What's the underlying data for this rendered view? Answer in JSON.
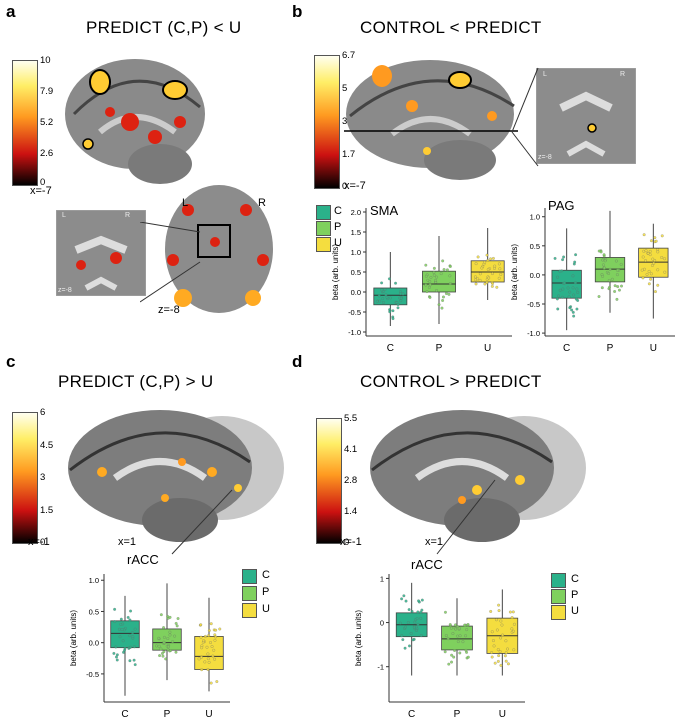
{
  "panels": {
    "a": {
      "label": "a",
      "title": "PREDICT (C,P) < U",
      "colorbar": [
        "10",
        "7.9",
        "5.2",
        "2.6",
        "0"
      ],
      "brain_labels": [
        "x=-7",
        "L",
        "R",
        "z=-8"
      ],
      "inset_labels": [
        "L",
        "R",
        "z=-8"
      ]
    },
    "b": {
      "label": "b",
      "title": "CONTROL < PREDICT",
      "colorbar": [
        "6.7",
        "5",
        "3.4",
        "1.7",
        "0"
      ],
      "brain_labels": [
        "x=-7"
      ],
      "inset_labels": [
        "L",
        "R",
        "z=-8"
      ]
    },
    "c": {
      "label": "c",
      "title": "PREDICT (C,P) > U",
      "colorbar": [
        "6",
        "4.5",
        "3",
        "1.5",
        "0"
      ],
      "brain_labels": [
        "x=-1",
        "x=1"
      ]
    },
    "d": {
      "label": "d",
      "title": "CONTROL > PREDICT",
      "colorbar": [
        "5.5",
        "4.1",
        "2.8",
        "1.4",
        "0"
      ],
      "brain_labels": [
        "x=-1",
        "x=1"
      ]
    }
  },
  "legend": [
    {
      "key": "C",
      "color": "#2bb18a"
    },
    {
      "key": "P",
      "color": "#7fd05e"
    },
    {
      "key": "U",
      "color": "#f4dd3f"
    }
  ],
  "colors": {
    "colormap_low": "#000000",
    "colormap_mid": "#cc1111",
    "colormap_high": "#ffee66",
    "colormap_top": "#fffff0"
  },
  "chart_data": [
    {
      "type": "box",
      "title": "SMA",
      "ylabel": "beta (arb. units)",
      "categories": [
        "C",
        "P",
        "U"
      ],
      "yticks": [
        "-1.0",
        "-0.5",
        "0.0",
        "0.5",
        "1.0",
        "1.5",
        "2.0"
      ],
      "ylim": [
        -1.1,
        2.1
      ],
      "boxes": [
        {
          "min": -0.85,
          "q1": -0.32,
          "median": -0.08,
          "q3": 0.1,
          "max": 1.0
        },
        {
          "min": -0.8,
          "q1": 0.0,
          "median": 0.2,
          "q3": 0.52,
          "max": 1.4
        },
        {
          "min": -0.2,
          "q1": 0.25,
          "median": 0.5,
          "q3": 0.78,
          "max": 1.6
        }
      ]
    },
    {
      "type": "box",
      "title": "PAG",
      "ylabel": "beta (arb. units)",
      "categories": [
        "C",
        "P",
        "U"
      ],
      "yticks": [
        "-1.0",
        "-0.5",
        "0.0",
        "0.5",
        "1.0"
      ],
      "ylim": [
        -1.05,
        1.15
      ],
      "boxes": [
        {
          "min": -0.95,
          "q1": -0.4,
          "median": -0.14,
          "q3": 0.08,
          "max": 0.8
        },
        {
          "min": -0.65,
          "q1": -0.12,
          "median": 0.1,
          "q3": 0.3,
          "max": 1.1
        },
        {
          "min": -0.75,
          "q1": -0.04,
          "median": 0.22,
          "q3": 0.46,
          "max": 0.88
        }
      ]
    },
    {
      "type": "box",
      "title": "rACC",
      "ylabel": "beta (arb. units)",
      "categories": [
        "C",
        "P",
        "U"
      ],
      "yticks": [
        "-0.5",
        "0.0",
        "0.5",
        "1.0"
      ],
      "ylim": [
        -0.95,
        1.1
      ],
      "boxes": [
        {
          "min": -0.85,
          "q1": -0.08,
          "median": 0.15,
          "q3": 0.35,
          "max": 0.75
        },
        {
          "min": -0.6,
          "q1": -0.12,
          "median": 0.0,
          "q3": 0.22,
          "max": 0.95
        },
        {
          "min": -0.78,
          "q1": -0.43,
          "median": -0.22,
          "q3": 0.1,
          "max": 0.72
        }
      ]
    },
    {
      "type": "box",
      "title": "rACC",
      "ylabel": "beta (arb. units)",
      "categories": [
        "C",
        "P",
        "U"
      ],
      "yticks": [
        "-1",
        "0",
        "1"
      ],
      "ylim": [
        -1.8,
        1.1
      ],
      "boxes": [
        {
          "min": -1.2,
          "q1": -0.32,
          "median": -0.05,
          "q3": 0.22,
          "max": 0.9
        },
        {
          "min": -1.2,
          "q1": -0.62,
          "median": -0.37,
          "q3": -0.08,
          "max": 0.55
        },
        {
          "min": -1.2,
          "q1": -0.7,
          "median": -0.3,
          "q3": 0.1,
          "max": 0.75
        }
      ]
    }
  ]
}
